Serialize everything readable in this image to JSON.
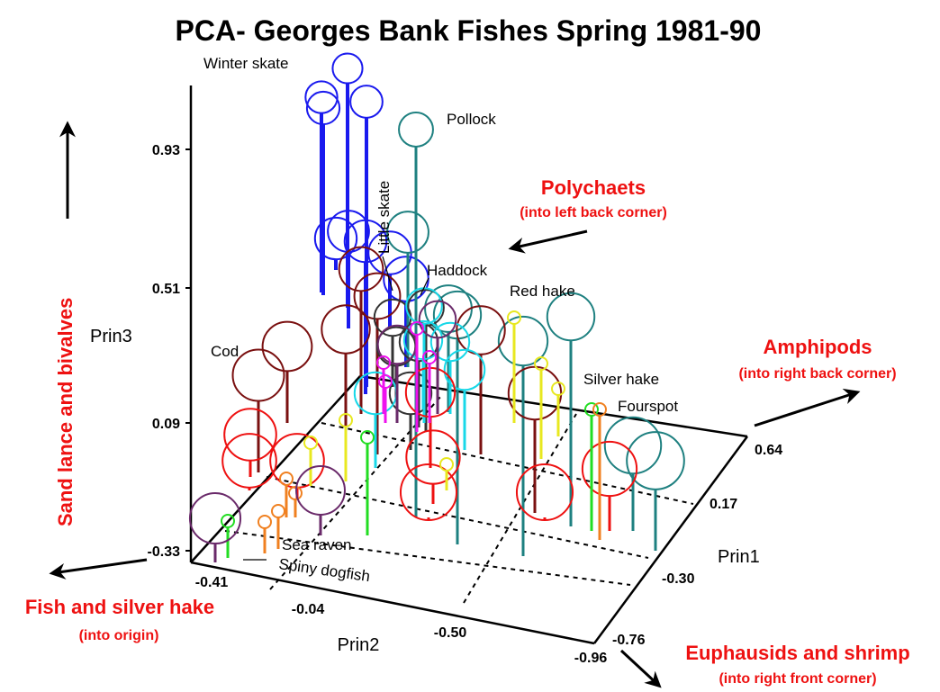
{
  "chart_data": {
    "type": "scatter",
    "subtype": "3d-lollipop",
    "title": "PCA- Georges Bank Fishes Spring 1981-90",
    "axes": {
      "prin1": {
        "label": "Prin1",
        "ticks": [
          "0.64",
          "0.17",
          "-0.30",
          "-0.76"
        ]
      },
      "prin2": {
        "label": "Prin2",
        "ticks": [
          "-0.41",
          "-0.04",
          "-0.50",
          "-0.96"
        ]
      },
      "prin3": {
        "label": "Prin3",
        "ticks": [
          "0.93",
          "0.51",
          "0.09",
          "-0.33"
        ]
      }
    },
    "grid": "dashed floor grid",
    "directions": {
      "up": {
        "label": "Sand lance and bivalves"
      },
      "left": {
        "label": "Fish and silver hake",
        "sub": "(into origin)"
      },
      "back_left": {
        "label": "Polychaets",
        "sub": "(into left back corner)"
      },
      "back_right": {
        "label": "Amphipods",
        "sub": "(into right back corner)"
      },
      "front_right": {
        "label": "Euphausids and shrimp",
        "sub": "(into right front corner)"
      }
    },
    "species_labels": [
      "Winter skate",
      "Pollock",
      "Little skate",
      "Haddock",
      "Red hake",
      "Cod",
      "Silver hake",
      "Fourspot",
      "Sea raven",
      "Spiny dogfish"
    ],
    "series": [
      {
        "species": "Winter skate",
        "color": "#1a1aee",
        "stems": [
          [
            386,
            76,
            342
          ],
          [
            357,
            108,
            325
          ],
          [
            359,
            120,
            328
          ],
          [
            407,
            113,
            430
          ],
          [
            387,
            257,
            365
          ],
          [
            373,
            265,
            300
          ],
          [
            433,
            281,
            365
          ],
          [
            406,
            268,
            438
          ],
          [
            451,
            310,
            408
          ]
        ]
      },
      {
        "species": "Pollock",
        "color": "#1e8080",
        "stems": [
          [
            462,
            144,
            575
          ],
          [
            453,
            258,
            408
          ],
          [
            508,
            350,
            605
          ],
          [
            498,
            343,
            458
          ],
          [
            581,
            379,
            618
          ],
          [
            634,
            352,
            585
          ],
          [
            703,
            495,
            590
          ],
          [
            728,
            512,
            612
          ]
        ]
      },
      {
        "species": "Cod",
        "color": "#7a1010",
        "stems": [
          [
            319,
            385,
            470
          ],
          [
            287,
            417,
            525
          ],
          [
            384,
            366,
            525
          ],
          [
            401,
            299,
            460
          ],
          [
            419,
            329,
            505
          ],
          [
            534,
            367,
            505
          ],
          [
            594,
            437,
            570
          ]
        ]
      },
      {
        "species": "Little skate",
        "color": "#333333",
        "stems": [
          [
            436,
            353,
            430
          ],
          [
            440,
            385,
            445
          ],
          [
            473,
            342,
            480
          ],
          [
            456,
            437,
            500
          ],
          [
            465,
            380,
            475
          ]
        ]
      },
      {
        "species": "Haddock",
        "color": "#18d8e8",
        "stems": [
          [
            471,
            340,
            470
          ],
          [
            417,
            437,
            520
          ],
          [
            470,
            378,
            455
          ],
          [
            516,
            411,
            500
          ],
          [
            500,
            380,
            460
          ]
        ]
      },
      {
        "species": "Red hake",
        "color": "#ee1111",
        "stems": [
          [
            278,
            483,
            530
          ],
          [
            277,
            512,
            545
          ],
          [
            330,
            512,
            555
          ],
          [
            478,
            436,
            520
          ],
          [
            481,
            508,
            560
          ],
          [
            476,
            547,
            575
          ],
          [
            605,
            547,
            575
          ],
          [
            677,
            521,
            590
          ]
        ]
      },
      {
        "species": "Silver hake",
        "color": "#22dd22",
        "stems": [
          [
            408,
            486,
            595
          ],
          [
            253,
            579,
            620
          ],
          [
            657,
            455,
            590
          ]
        ]
      },
      {
        "species": "Fourspot",
        "color": "#f08020",
        "stems": [
          [
            666,
            455,
            600
          ],
          [
            318,
            532,
            575
          ],
          [
            328,
            548,
            575
          ],
          [
            309,
            568,
            610
          ],
          [
            294,
            580,
            615
          ]
        ]
      },
      {
        "species": "Red hake (yellow)",
        "color": "#e8e820",
        "stems": [
          [
            571,
            353,
            470
          ],
          [
            601,
            404,
            510
          ],
          [
            620,
            432,
            485
          ],
          [
            496,
            516,
            545
          ],
          [
            345,
            492,
            540
          ],
          [
            384,
            467,
            535
          ]
        ]
      },
      {
        "species": "Sea raven",
        "color": "#6a2a6a",
        "stems": [
          [
            239,
            576,
            625
          ],
          [
            356,
            545,
            595
          ],
          [
            441,
            383,
            470
          ],
          [
            486,
            355,
            460
          ]
        ]
      },
      {
        "species": "Magenta",
        "color": "#ee11ee",
        "stems": [
          [
            463,
            365,
            480
          ],
          [
            426,
            403,
            460
          ],
          [
            428,
            424,
            470
          ],
          [
            477,
            397,
            470
          ]
        ]
      }
    ]
  }
}
